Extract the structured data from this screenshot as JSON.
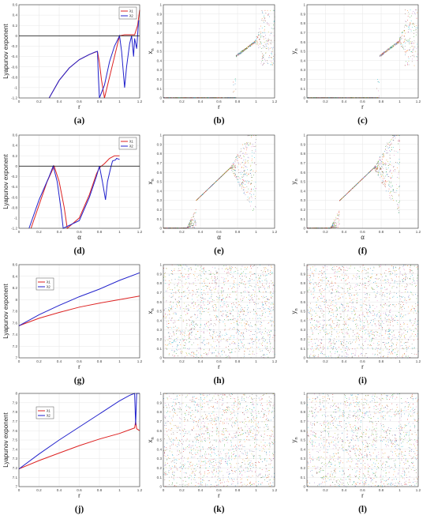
{
  "chart_data": [
    {
      "id": "a",
      "caption": "(a)",
      "type": "line",
      "xlabel": "r",
      "ylabel": "Lyapunov exponent",
      "xlim": [
        0,
        1.2
      ],
      "ylim": [
        -1.2,
        0.6
      ],
      "xticks": [
        "0",
        "0.2",
        "0.4",
        "0.6",
        "0.8",
        "1",
        "1.2"
      ],
      "yticks": [
        "-1.2",
        "-1",
        "-0.8",
        "-0.6",
        "-0.4",
        "-0.2",
        "0",
        "0.2",
        "0.4",
        "0.6"
      ],
      "grid": true,
      "legend": {
        "position": "top-right",
        "entries": [
          "λ1",
          "λ2"
        ]
      },
      "series": [
        {
          "name": "λ1",
          "color": "#dd2222",
          "points": [
            [
              0.3,
              -1.2
            ],
            [
              0.4,
              -0.86
            ],
            [
              0.5,
              -0.62
            ],
            [
              0.6,
              -0.46
            ],
            [
              0.7,
              -0.36
            ],
            [
              0.78,
              -0.3
            ],
            [
              0.8,
              -0.52
            ],
            [
              0.82,
              -0.85
            ],
            [
              0.85,
              -1.2
            ],
            [
              1.0,
              0.0
            ],
            [
              1.05,
              0.02
            ],
            [
              1.1,
              0.02
            ],
            [
              1.15,
              0.02
            ],
            [
              1.18,
              0.2
            ],
            [
              1.2,
              0.5
            ]
          ]
        },
        {
          "name": "λ2",
          "color": "#2222cc",
          "points": [
            [
              0.3,
              -1.2
            ],
            [
              0.4,
              -0.86
            ],
            [
              0.5,
              -0.62
            ],
            [
              0.6,
              -0.46
            ],
            [
              0.7,
              -0.36
            ],
            [
              0.76,
              -0.31
            ],
            [
              0.78,
              -0.3
            ],
            [
              0.79,
              -0.8
            ],
            [
              0.8,
              -1.2
            ],
            [
              0.85,
              -0.95
            ],
            [
              0.9,
              -0.5
            ],
            [
              0.95,
              -0.2
            ],
            [
              1.0,
              0.0
            ],
            [
              1.02,
              -0.3
            ],
            [
              1.05,
              -1.0
            ],
            [
              1.07,
              -0.6
            ],
            [
              1.1,
              -0.15
            ],
            [
              1.12,
              0.0
            ],
            [
              1.14,
              -0.4
            ],
            [
              1.15,
              -0.05
            ],
            [
              1.17,
              -0.25
            ],
            [
              1.19,
              0.3
            ]
          ]
        },
        {
          "name": "",
          "color": "#222222",
          "points": [
            [
              0,
              0
            ],
            [
              1.2,
              0
            ]
          ]
        }
      ]
    },
    {
      "id": "b",
      "caption": "(b)",
      "type": "scatter",
      "style": "bifurcation",
      "map": "logistic",
      "xlabel": "r",
      "ylabel": "x",
      "ylabel_sub": "n",
      "xlim": [
        0,
        1.2
      ],
      "ylim": [
        0,
        1
      ],
      "xticks": [
        "0",
        "0.2",
        "0.4",
        "0.6",
        "0.8",
        "1",
        "1.2"
      ],
      "yticks": [
        "0",
        "0.1",
        "0.2",
        "0.3",
        "0.4",
        "0.5",
        "0.6",
        "0.7",
        "0.8",
        "0.9",
        "1"
      ],
      "grid": true
    },
    {
      "id": "c",
      "caption": "(c)",
      "type": "scatter",
      "style": "bifurcation",
      "map": "logistic",
      "xlabel": "r",
      "ylabel": "y",
      "ylabel_sub": "n",
      "xlim": [
        0,
        1.2
      ],
      "ylim": [
        0,
        1
      ],
      "xticks": [
        "0",
        "0.2",
        "0.4",
        "0.6",
        "0.8",
        "1",
        "1.2"
      ],
      "yticks": [
        "0",
        "0.1",
        "0.2",
        "0.3",
        "0.4",
        "0.5",
        "0.6",
        "0.7",
        "0.8",
        "0.9",
        "1"
      ],
      "grid": true
    },
    {
      "id": "d",
      "caption": "(d)",
      "type": "line",
      "xlabel": "α",
      "ylabel": "Lyapunov exponent",
      "xlim": [
        0,
        1.2
      ],
      "ylim": [
        -1.2,
        0.6
      ],
      "xticks": [
        "0",
        "0.2",
        "0.4",
        "0.6",
        "0.8",
        "1",
        "1.2"
      ],
      "yticks": [
        "-1.2",
        "-1",
        "-0.8",
        "-0.6",
        "-0.4",
        "-0.2",
        "0",
        "0.2",
        "0.4",
        "0.6"
      ],
      "grid": true,
      "legend": {
        "position": "top-right",
        "entries": [
          "λ1",
          "λ2"
        ]
      },
      "series": [
        {
          "name": "λ1",
          "color": "#dd2222",
          "points": [
            [
              0.12,
              -1.2
            ],
            [
              0.2,
              -0.75
            ],
            [
              0.28,
              -0.3
            ],
            [
              0.35,
              0.0
            ],
            [
              0.4,
              -0.3
            ],
            [
              0.45,
              -0.8
            ],
            [
              0.48,
              -1.2
            ],
            [
              0.6,
              -1.0
            ],
            [
              0.7,
              -0.55
            ],
            [
              0.77,
              -0.15
            ],
            [
              0.8,
              -0.03
            ],
            [
              0.85,
              0.05
            ],
            [
              0.9,
              0.15
            ],
            [
              0.95,
              0.2
            ],
            [
              1.0,
              0.2
            ]
          ]
        },
        {
          "name": "λ2",
          "color": "#2222cc",
          "points": [
            [
              0.1,
              -1.2
            ],
            [
              0.2,
              -0.65
            ],
            [
              0.3,
              -0.2
            ],
            [
              0.34,
              0.0
            ],
            [
              0.38,
              -0.3
            ],
            [
              0.42,
              -0.85
            ],
            [
              0.44,
              -1.2
            ],
            [
              0.6,
              -1.05
            ],
            [
              0.7,
              -0.6
            ],
            [
              0.77,
              -0.2
            ],
            [
              0.8,
              0.0
            ],
            [
              0.83,
              -0.3
            ],
            [
              0.86,
              -0.65
            ],
            [
              0.88,
              -0.3
            ],
            [
              0.91,
              -0.05
            ],
            [
              0.93,
              0.1
            ],
            [
              0.96,
              0.12
            ],
            [
              0.97,
              0.15
            ],
            [
              1.0,
              0.13
            ]
          ]
        },
        {
          "name": "",
          "color": "#222222",
          "points": [
            [
              0,
              0
            ],
            [
              1.2,
              0
            ]
          ]
        }
      ]
    },
    {
      "id": "e",
      "caption": "(e)",
      "type": "scatter",
      "style": "bifurcation",
      "map": "delta",
      "xlabel": "α",
      "ylabel": "x",
      "ylabel_sub": "n",
      "xlim": [
        0,
        1.2
      ],
      "ylim": [
        0,
        1
      ],
      "xticks": [
        "0",
        "0.2",
        "0.4",
        "0.6",
        "0.8",
        "1",
        "1.2"
      ],
      "yticks": [
        "0",
        "0.1",
        "0.2",
        "0.3",
        "0.4",
        "0.5",
        "0.6",
        "0.7",
        "0.8",
        "0.9",
        "1"
      ],
      "grid": true
    },
    {
      "id": "f",
      "caption": "(f)",
      "type": "scatter",
      "style": "bifurcation",
      "map": "delta",
      "xlabel": "α",
      "ylabel": "y",
      "ylabel_sub": "n",
      "xlim": [
        0,
        1.2
      ],
      "ylim": [
        0,
        1
      ],
      "xticks": [
        "0",
        "0.2",
        "0.4",
        "0.6",
        "0.8",
        "1",
        "1.2"
      ],
      "yticks": [
        "0",
        "0.1",
        "0.2",
        "0.3",
        "0.4",
        "0.5",
        "0.6",
        "0.7",
        "0.8",
        "0.9",
        "1"
      ],
      "grid": true
    },
    {
      "id": "g",
      "caption": "(g)",
      "type": "line",
      "xlabel": "r",
      "ylabel": "Lyapunov exponent",
      "xlim": [
        0,
        1.2
      ],
      "ylim": [
        7,
        8.6
      ],
      "xticks": [
        "0",
        "0.2",
        "0.4",
        "0.6",
        "0.8",
        "1",
        "1.2"
      ],
      "yticks": [
        "7",
        "7.2",
        "7.4",
        "7.6",
        "7.8",
        "8",
        "8.2",
        "8.4",
        "8.6"
      ],
      "grid": true,
      "legend": {
        "position": "top-left",
        "entries": [
          "λ1",
          "λ2"
        ]
      },
      "series": [
        {
          "name": "λ1",
          "color": "#dd2222",
          "points": [
            [
              0,
              7.55
            ],
            [
              0.2,
              7.68
            ],
            [
              0.4,
              7.78
            ],
            [
              0.6,
              7.87
            ],
            [
              0.8,
              7.94
            ],
            [
              1.0,
              8.0
            ],
            [
              1.2,
              8.06
            ]
          ]
        },
        {
          "name": "λ2",
          "color": "#2222cc",
          "points": [
            [
              0,
              7.55
            ],
            [
              0.2,
              7.74
            ],
            [
              0.4,
              7.9
            ],
            [
              0.6,
              8.05
            ],
            [
              0.8,
              8.18
            ],
            [
              1.0,
              8.33
            ],
            [
              1.2,
              8.46
            ]
          ]
        }
      ]
    },
    {
      "id": "h",
      "caption": "(h)",
      "type": "scatter",
      "style": "uniform",
      "xlabel": "r",
      "ylabel": "x",
      "ylabel_sub": "n",
      "xlim": [
        0,
        1.2
      ],
      "ylim": [
        0,
        1
      ],
      "xticks": [
        "0",
        "0.2",
        "0.4",
        "0.6",
        "0.8",
        "1",
        "1.2"
      ],
      "yticks": [
        "0",
        "0.1",
        "0.2",
        "0.3",
        "0.4",
        "0.5",
        "0.6",
        "0.7",
        "0.8",
        "0.9",
        "1"
      ],
      "grid": true
    },
    {
      "id": "i",
      "caption": "(i)",
      "type": "scatter",
      "style": "uniform",
      "xlabel": "r",
      "ylabel": "y",
      "ylabel_sub": "n",
      "xlim": [
        0,
        1.2
      ],
      "ylim": [
        0,
        1
      ],
      "xticks": [
        "0",
        "0.2",
        "0.4",
        "0.6",
        "0.8",
        "1",
        "1.2"
      ],
      "yticks": [
        "0",
        "0.1",
        "0.2",
        "0.3",
        "0.4",
        "0.5",
        "0.6",
        "0.7",
        "0.8",
        "0.9",
        "1"
      ],
      "grid": true
    },
    {
      "id": "j",
      "caption": "(j)",
      "type": "line",
      "xlabel": "r",
      "ylabel": "Lyapunov exponent",
      "xlim": [
        0,
        1.2
      ],
      "ylim": [
        7,
        8
      ],
      "xticks": [
        "0",
        "0.2",
        "0.4",
        "0.6",
        "0.8",
        "1",
        "1.2"
      ],
      "yticks": [
        "7",
        "7.1",
        "7.2",
        "7.3",
        "7.4",
        "7.5",
        "7.6",
        "7.7",
        "7.8",
        "7.9",
        "8"
      ],
      "grid": true,
      "legend": {
        "position": "top-left",
        "entries": [
          "λ1",
          "λ2"
        ]
      },
      "series": [
        {
          "name": "λ1",
          "color": "#dd2222",
          "points": [
            [
              0,
              7.19
            ],
            [
              0.2,
              7.28
            ],
            [
              0.4,
              7.36
            ],
            [
              0.6,
              7.44
            ],
            [
              0.8,
              7.51
            ],
            [
              1.0,
              7.57
            ],
            [
              1.1,
              7.61
            ],
            [
              1.15,
              7.63
            ],
            [
              1.16,
              7.7
            ],
            [
              1.17,
              7.62
            ],
            [
              1.2,
              7.6
            ]
          ]
        },
        {
          "name": "λ2",
          "color": "#2222cc",
          "points": [
            [
              0,
              7.19
            ],
            [
              0.2,
              7.35
            ],
            [
              0.4,
              7.5
            ],
            [
              0.6,
              7.64
            ],
            [
              0.8,
              7.78
            ],
            [
              1.0,
              7.92
            ],
            [
              1.1,
              7.98
            ],
            [
              1.15,
              8.0
            ],
            [
              1.16,
              7.66
            ],
            [
              1.17,
              8.0
            ],
            [
              1.2,
              8.0
            ]
          ]
        }
      ]
    },
    {
      "id": "k",
      "caption": "(k)",
      "type": "scatter",
      "style": "uniform",
      "xlabel": "r",
      "ylabel": "x",
      "ylabel_sub": "n",
      "xlim": [
        0,
        1.2
      ],
      "ylim": [
        0,
        1
      ],
      "xticks": [
        "0",
        "0.2",
        "0.4",
        "0.6",
        "0.8",
        "1",
        "1.2"
      ],
      "yticks": [
        "0",
        "0.1",
        "0.2",
        "0.3",
        "0.4",
        "0.5",
        "0.6",
        "0.7",
        "0.8",
        "0.9",
        "1"
      ],
      "grid": true
    },
    {
      "id": "l",
      "caption": "(l)",
      "type": "scatter",
      "style": "uniform",
      "xlabel": "r",
      "ylabel": "y",
      "ylabel_sub": "n",
      "xlim": [
        0,
        1.2
      ],
      "ylim": [
        0,
        1
      ],
      "xticks": [
        "0",
        "0.2",
        "0.4",
        "0.6",
        "0.8",
        "1",
        "1.2"
      ],
      "yticks": [
        "0",
        "0.1",
        "0.2",
        "0.3",
        "0.4",
        "0.5",
        "0.6",
        "0.7",
        "0.8",
        "0.9",
        "1"
      ],
      "grid": true
    }
  ],
  "colors": {
    "axis": "#333333",
    "grid": "#e6e6e6",
    "frame_bg": "#ffffff",
    "scatter_palette": [
      "#1f77b4",
      "#ff7f0e",
      "#2ca02c",
      "#d62728",
      "#9467bd",
      "#8c564b",
      "#e377c2",
      "#17becf",
      "#bcbd22",
      "#7f7f7f"
    ]
  }
}
